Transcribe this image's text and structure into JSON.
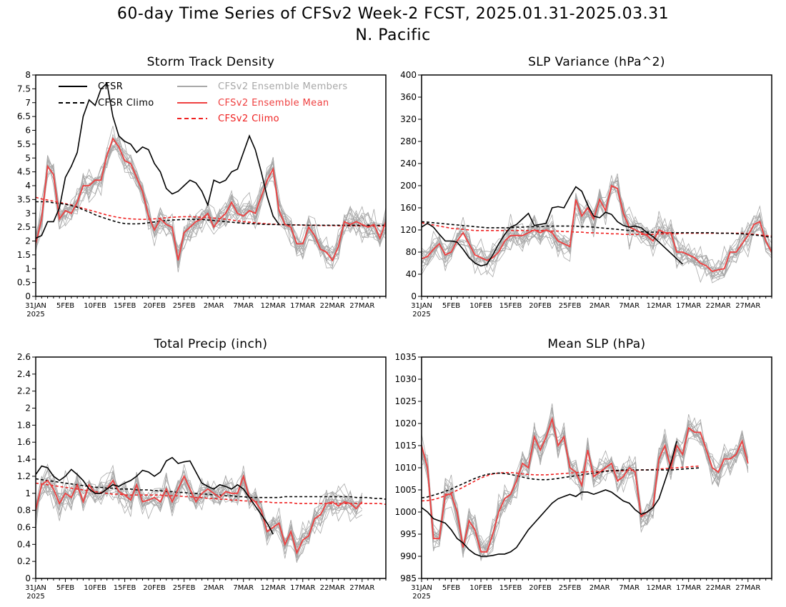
{
  "title_line1": "60-day Time Series of CFSv2 Week-2 FCST, 2025.01.31-2025.03.31",
  "title_line2": "N. Pacific",
  "x_tick_labels": [
    "31JAN",
    "5FEB",
    "10FEB",
    "15FEB",
    "20FEB",
    "25FEB",
    "2MAR",
    "7MAR",
    "12MAR",
    "17MAR",
    "22MAR",
    "27MAR"
  ],
  "x_year_label": "2025",
  "legend": {
    "cfsr": "CFSR",
    "cfsr_climo": "CFSR Climo",
    "ens_members": "CFSv2 Ensemble Members",
    "ens_mean": "CFSv2 Ensemble Mean",
    "cfsv2_climo": "CFSv2 Climo"
  },
  "colors": {
    "cfsr": "#000000",
    "cfsr_climo": "#000000",
    "ens_members": "#a8a8a8",
    "ens_mean": "#ef4040",
    "cfsv2_climo": "#ef2020"
  },
  "chart_data": [
    {
      "type": "line",
      "title": "Storm Track Density",
      "ylim": [
        0,
        8
      ],
      "yticks": [
        0,
        0.5,
        1,
        1.5,
        2,
        2.5,
        3,
        3.5,
        4,
        4.5,
        5,
        5.5,
        6,
        6.5,
        7,
        7.5,
        8
      ],
      "ytick_labels": [
        "0",
        "0.5",
        "1",
        "1.5",
        "2",
        "2.5",
        "3",
        "3.5",
        "4",
        "4.5",
        "5",
        "5.5",
        "6",
        "6.5",
        "7",
        "7.5",
        "8"
      ],
      "x_days": [
        0,
        59
      ],
      "cfsr": [
        2.1,
        2.2,
        2.7,
        2.7,
        3.2,
        4.3,
        4.7,
        5.2,
        6.5,
        7.1,
        6.9,
        7.5,
        7.7,
        6.5,
        5.8,
        5.6,
        5.5,
        5.2,
        5.4,
        5.3,
        4.8,
        4.5,
        3.9,
        3.7,
        3.8,
        4.0,
        4.2,
        4.1,
        3.8,
        3.3,
        4.2,
        4.1,
        4.2,
        4.5,
        4.6,
        5.2,
        5.8,
        5.3,
        4.5,
        3.6,
        2.9,
        2.6
      ],
      "cfsr_climo": [
        3.42,
        3.42,
        3.42,
        3.38,
        3.36,
        3.33,
        3.28,
        3.22,
        3.13,
        3.05,
        2.95,
        2.87,
        2.8,
        2.73,
        2.67,
        2.63,
        2.62,
        2.62,
        2.63,
        2.66,
        2.69,
        2.72,
        2.74,
        2.76,
        2.77,
        2.78,
        2.78,
        2.78,
        2.78,
        2.76,
        2.74,
        2.72,
        2.7,
        2.68,
        2.66,
        2.64,
        2.63,
        2.62,
        2.61,
        2.6,
        2.6,
        2.59,
        2.59,
        2.58,
        2.58,
        2.58,
        2.57,
        2.57,
        2.57,
        2.57,
        2.57,
        2.57,
        2.57,
        2.57,
        2.57,
        2.57,
        2.57,
        2.57,
        2.57,
        2.57
      ],
      "ens_mean": [
        1.9,
        2.8,
        4.7,
        4.4,
        2.8,
        3.1,
        3.0,
        3.4,
        4.0,
        4.0,
        4.2,
        4.2,
        5.1,
        5.7,
        5.4,
        4.9,
        4.8,
        4.3,
        3.8,
        2.9,
        2.4,
        2.8,
        2.6,
        2.5,
        1.3,
        2.3,
        2.5,
        2.7,
        2.8,
        3.0,
        2.5,
        2.8,
        3.0,
        3.4,
        3.0,
        2.9,
        3.1,
        3.0,
        3.6,
        4.2,
        4.6,
        3.1,
        2.6,
        2.5,
        1.9,
        1.9,
        2.5,
        2.2,
        1.7,
        1.6,
        1.3,
        1.8,
        2.7,
        2.6,
        2.7,
        2.6,
        2.5,
        2.6,
        2.1,
        2.7
      ],
      "cfsv2_climo": [
        3.58,
        3.52,
        3.48,
        3.44,
        3.4,
        3.35,
        3.3,
        3.24,
        3.18,
        3.12,
        3.06,
        3.0,
        2.94,
        2.89,
        2.85,
        2.82,
        2.8,
        2.79,
        2.78,
        2.79,
        2.8,
        2.82,
        2.84,
        2.86,
        2.87,
        2.88,
        2.88,
        2.87,
        2.86,
        2.85,
        2.83,
        2.81,
        2.79,
        2.76,
        2.73,
        2.7,
        2.68,
        2.66,
        2.64,
        2.62,
        2.61,
        2.6,
        2.59,
        2.58,
        2.58,
        2.57,
        2.57,
        2.57,
        2.56,
        2.56,
        2.56,
        2.55,
        2.55,
        2.55,
        2.55,
        2.55,
        2.55,
        2.54,
        2.54,
        2.54
      ]
    },
    {
      "type": "line",
      "title": "SLP Variance (hPa^2)",
      "ylim": [
        0,
        400
      ],
      "yticks": [
        0,
        40,
        80,
        120,
        160,
        200,
        240,
        280,
        320,
        360,
        400
      ],
      "ytick_labels": [
        "0",
        "40",
        "80",
        "120",
        "160",
        "200",
        "240",
        "280",
        "320",
        "360",
        "400"
      ],
      "x_days": [
        0,
        59
      ],
      "cfsr": [
        125,
        132,
        125,
        112,
        100,
        100,
        98,
        85,
        70,
        60,
        55,
        58,
        75,
        95,
        112,
        125,
        130,
        140,
        150,
        128,
        130,
        132,
        160,
        162,
        160,
        180,
        198,
        190,
        165,
        145,
        142,
        152,
        148,
        135,
        128,
        125,
        127,
        124,
        115,
        108,
        98,
        88,
        78,
        68,
        58
      ],
      "cfsr_climo": [
        135,
        134,
        133,
        132,
        131,
        130,
        129,
        128,
        127,
        126,
        125,
        124,
        124,
        124,
        124,
        124,
        125,
        125,
        126,
        126,
        126,
        127,
        127,
        127,
        127,
        127,
        127,
        126,
        126,
        125,
        124,
        123,
        122,
        121,
        120,
        119,
        118,
        117,
        116,
        116,
        116,
        115,
        115,
        115,
        115,
        115,
        115,
        115,
        115,
        115,
        114,
        114,
        114,
        113,
        113,
        112,
        111,
        110,
        108,
        107
      ],
      "ens_mean": [
        68,
        72,
        85,
        95,
        75,
        80,
        100,
        115,
        95,
        75,
        70,
        65,
        70,
        80,
        100,
        110,
        110,
        110,
        115,
        120,
        115,
        120,
        115,
        100,
        95,
        90,
        175,
        145,
        160,
        140,
        175,
        155,
        200,
        195,
        150,
        125,
        120,
        115,
        110,
        100,
        120,
        115,
        115,
        80,
        80,
        75,
        70,
        60,
        55,
        45,
        48,
        50,
        80,
        80,
        95,
        110,
        130,
        135,
        100,
        80,
        72
      ],
      "cfsv2_climo": [
        133,
        131,
        129,
        127,
        125,
        123,
        122,
        121,
        120,
        119,
        119,
        119,
        119,
        119,
        119,
        119,
        119,
        119,
        119,
        119,
        119,
        119,
        118,
        118,
        117,
        117,
        116,
        116,
        115,
        115,
        114,
        114,
        113,
        113,
        112,
        112,
        112,
        112,
        112,
        112,
        113,
        113,
        113,
        113,
        114,
        114,
        114,
        114,
        114,
        114,
        114,
        114,
        114,
        114,
        114,
        113,
        112,
        111,
        110,
        109
      ]
    },
    {
      "type": "line",
      "title": "Total Precip (inch)",
      "ylim": [
        0,
        2.6
      ],
      "yticks": [
        0,
        0.2,
        0.4,
        0.6,
        0.8,
        1,
        1.2,
        1.4,
        1.6,
        1.8,
        2,
        2.2,
        2.4,
        2.6
      ],
      "ytick_labels": [
        "0",
        "0.2",
        "0.4",
        "0.6",
        "0.8",
        "1",
        "1.2",
        "1.4",
        "1.6",
        "1.8",
        "2",
        "2.2",
        "2.4",
        "2.6"
      ],
      "x_days": [
        0,
        59
      ],
      "cfsr": [
        1.22,
        1.32,
        1.3,
        1.2,
        1.15,
        1.2,
        1.28,
        1.22,
        1.15,
        1.05,
        1.0,
        1.0,
        1.05,
        1.1,
        1.08,
        1.12,
        1.15,
        1.2,
        1.27,
        1.25,
        1.2,
        1.25,
        1.38,
        1.42,
        1.35,
        1.37,
        1.38,
        1.25,
        1.12,
        1.08,
        1.05,
        1.1,
        1.08,
        1.05,
        1.1,
        1.05,
        0.95,
        0.85,
        0.75,
        0.65,
        0.52
      ],
      "cfsr_climo": [
        1.17,
        1.16,
        1.15,
        1.14,
        1.13,
        1.12,
        1.11,
        1.1,
        1.09,
        1.08,
        1.07,
        1.07,
        1.06,
        1.06,
        1.05,
        1.05,
        1.05,
        1.04,
        1.04,
        1.04,
        1.03,
        1.03,
        1.02,
        1.02,
        1.01,
        1.01,
        1.0,
        1.0,
        0.99,
        0.99,
        0.98,
        0.98,
        0.97,
        0.97,
        0.96,
        0.96,
        0.95,
        0.95,
        0.95,
        0.95,
        0.95,
        0.95,
        0.96,
        0.96,
        0.96,
        0.96,
        0.96,
        0.96,
        0.96,
        0.96,
        0.96,
        0.96,
        0.96,
        0.96,
        0.95,
        0.95,
        0.95,
        0.94,
        0.94,
        0.93
      ],
      "ens_mean": [
        0.8,
        1.1,
        1.15,
        1.05,
        0.88,
        1.0,
        0.95,
        1.1,
        0.9,
        1.1,
        1.0,
        1.0,
        1.05,
        1.15,
        1.02,
        0.98,
        0.92,
        1.1,
        0.9,
        0.92,
        0.95,
        0.9,
        1.05,
        0.9,
        1.05,
        1.2,
        1.05,
        0.9,
        1.0,
        1.05,
        1.0,
        0.95,
        1.02,
        1.0,
        1.0,
        1.2,
        0.95,
        0.9,
        0.8,
        0.55,
        0.6,
        0.65,
        0.4,
        0.55,
        0.3,
        0.45,
        0.5,
        0.7,
        0.75,
        0.88,
        0.9,
        0.85,
        0.9,
        0.88,
        0.82,
        0.9
      ],
      "cfsv2_climo": [
        1.12,
        1.11,
        1.1,
        1.09,
        1.08,
        1.07,
        1.06,
        1.05,
        1.04,
        1.03,
        1.02,
        1.01,
        1.0,
        0.99,
        0.99,
        0.98,
        0.98,
        0.98,
        0.98,
        0.98,
        0.98,
        0.98,
        0.97,
        0.97,
        0.97,
        0.96,
        0.96,
        0.95,
        0.95,
        0.94,
        0.94,
        0.93,
        0.93,
        0.92,
        0.92,
        0.91,
        0.91,
        0.9,
        0.9,
        0.9,
        0.89,
        0.89,
        0.89,
        0.89,
        0.88,
        0.88,
        0.88,
        0.88,
        0.88,
        0.88,
        0.88,
        0.88,
        0.88,
        0.88,
        0.88,
        0.88,
        0.88,
        0.88,
        0.88,
        0.87
      ]
    },
    {
      "type": "line",
      "title": "Mean SLP (hPa)",
      "ylim": [
        985,
        1035
      ],
      "yticks": [
        985,
        990,
        995,
        1000,
        1005,
        1010,
        1015,
        1020,
        1025,
        1030,
        1035
      ],
      "ytick_labels": [
        "985",
        "990",
        "995",
        "1000",
        "1005",
        "1010",
        "1015",
        "1020",
        "1025",
        "1030",
        "1035"
      ],
      "x_days": [
        0,
        59
      ],
      "cfsr": [
        1001,
        1000,
        998.5,
        998,
        997.5,
        996,
        994,
        993,
        991.5,
        990.5,
        990,
        990,
        990.2,
        990.5,
        990.5,
        991,
        992,
        994,
        996,
        997.5,
        999,
        1000.5,
        1002,
        1003,
        1003.5,
        1004,
        1003.5,
        1004.5,
        1004.5,
        1004,
        1004.5,
        1005,
        1004.5,
        1003.5,
        1002.5,
        1002,
        1000.5,
        999.5,
        1000,
        1001,
        1003,
        1007,
        1011,
        1016
      ],
      "cfsr_climo": [
        1003.2,
        1003.4,
        1003.8,
        1004.2,
        1004.7,
        1005.2,
        1005.8,
        1006.4,
        1007.0,
        1007.6,
        1008.1,
        1008.5,
        1008.7,
        1008.8,
        1008.7,
        1008.5,
        1008.2,
        1007.9,
        1007.6,
        1007.4,
        1007.3,
        1007.3,
        1007.4,
        1007.6,
        1007.8,
        1008.0,
        1008.2,
        1008.4,
        1008.6,
        1008.8,
        1009.0,
        1009.2,
        1009.3,
        1009.4,
        1009.5,
        1009.5,
        1009.5,
        1009.5,
        1009.5,
        1009.5,
        1009.5,
        1009.5,
        1009.5,
        1009.6,
        1009.7,
        1009.8,
        1009.9,
        1010.0
      ],
      "ens_mean": [
        1015,
        1010,
        994,
        994,
        1004,
        1004,
        1000,
        992,
        998,
        996,
        991,
        991,
        995,
        1000,
        1003,
        1004,
        1007,
        1011,
        1010,
        1017,
        1014,
        1017,
        1021,
        1015,
        1017,
        1010,
        1009,
        1006,
        1014,
        1008,
        1009,
        1010,
        1011,
        1007,
        1008,
        1010,
        1009,
        999,
        1000,
        1001,
        1012,
        1015,
        1010,
        1015,
        1013,
        1019,
        1018,
        1018,
        1014,
        1010,
        1009,
        1012,
        1012,
        1013,
        1016,
        1011
      ],
      "cfsv2_climo": [
        1002.5,
        1002.6,
        1002.8,
        1003.2,
        1003.7,
        1004.3,
        1004.9,
        1005.6,
        1006.3,
        1007.0,
        1007.7,
        1008.2,
        1008.6,
        1008.8,
        1008.9,
        1008.9,
        1008.8,
        1008.6,
        1008.5,
        1008.4,
        1008.4,
        1008.4,
        1008.5,
        1008.6,
        1008.7,
        1008.8,
        1008.9,
        1009.0,
        1009.1,
        1009.2,
        1009.2,
        1009.3,
        1009.3,
        1009.3,
        1009.3,
        1009.4,
        1009.4,
        1009.5,
        1009.5,
        1009.6,
        1009.7,
        1009.8,
        1009.9,
        1010.0,
        1010.1,
        1010.2,
        1010.3,
        1010.4
      ]
    }
  ]
}
